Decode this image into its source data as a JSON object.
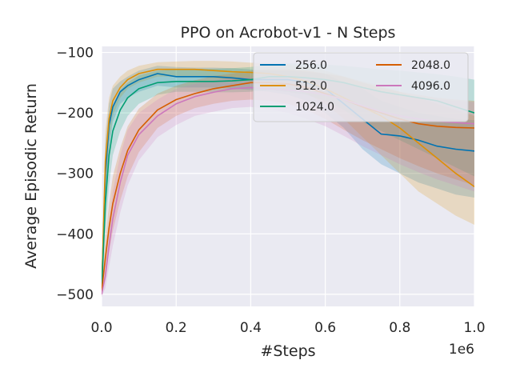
{
  "chart_data": {
    "type": "line",
    "title": "PPO on Acrobot-v1 - N Steps",
    "xlabel": "#Steps",
    "ylabel": "Average Episodic Return",
    "x_offset_label": "1e6",
    "xlim": [
      0,
      1.0
    ],
    "ylim": [
      -520,
      -90
    ],
    "xticks": [
      0.0,
      0.2,
      0.4,
      0.6,
      0.8,
      1.0
    ],
    "xtick_labels": [
      "0.0",
      "0.2",
      "0.4",
      "0.6",
      "0.8",
      "1.0"
    ],
    "yticks": [
      -100,
      -200,
      -300,
      -400,
      -500
    ],
    "ytick_labels": [
      "−100",
      "−200",
      "−300",
      "−400",
      "−500"
    ],
    "grid": true,
    "legend_location": "top-right",
    "legend_columns": 2,
    "x": [
      0.0,
      0.01,
      0.02,
      0.03,
      0.05,
      0.07,
      0.1,
      0.15,
      0.2,
      0.25,
      0.3,
      0.35,
      0.4,
      0.45,
      0.5,
      0.55,
      0.6,
      0.65,
      0.7,
      0.75,
      0.8,
      0.85,
      0.9,
      0.95,
      1.0
    ],
    "series": [
      {
        "name": "256.0",
        "color": "#0173b2",
        "values": [
          -495,
          -300,
          -220,
          -190,
          -165,
          -155,
          -145,
          -135,
          -140,
          -140,
          -140,
          -142,
          -145,
          -145,
          -145,
          -150,
          -160,
          -185,
          -210,
          -235,
          -238,
          -245,
          -255,
          -260,
          -263
        ],
        "lower": [
          -500,
          -360,
          -260,
          -215,
          -185,
          -175,
          -165,
          -155,
          -158,
          -158,
          -158,
          -160,
          -162,
          -165,
          -170,
          -180,
          -200,
          -225,
          -260,
          -285,
          -300,
          -315,
          -325,
          -335,
          -340
        ],
        "upper": [
          -490,
          -250,
          -185,
          -160,
          -148,
          -140,
          -130,
          -122,
          -124,
          -125,
          -125,
          -126,
          -128,
          -130,
          -130,
          -132,
          -135,
          -150,
          -160,
          -180,
          -190,
          -200,
          -205,
          -210,
          -212
        ]
      },
      {
        "name": "512.0",
        "color": "#de8f05",
        "values": [
          -495,
          -280,
          -210,
          -180,
          -158,
          -145,
          -135,
          -128,
          -128,
          -128,
          -130,
          -132,
          -133,
          -135,
          -140,
          -148,
          -160,
          -175,
          -190,
          -205,
          -225,
          -250,
          -275,
          -300,
          -322
        ],
        "lower": [
          -500,
          -340,
          -250,
          -205,
          -175,
          -160,
          -150,
          -140,
          -140,
          -140,
          -142,
          -145,
          -148,
          -152,
          -158,
          -168,
          -185,
          -210,
          -240,
          -270,
          -300,
          -330,
          -350,
          -370,
          -385
        ],
        "upper": [
          -490,
          -230,
          -175,
          -155,
          -140,
          -130,
          -122,
          -116,
          -115,
          -114,
          -114,
          -115,
          -117,
          -118,
          -120,
          -124,
          -130,
          -140,
          -148,
          -155,
          -165,
          -175,
          -185,
          -195,
          -205
        ]
      },
      {
        "name": "1024.0",
        "color": "#029e73",
        "values": [
          -495,
          -350,
          -270,
          -230,
          -195,
          -175,
          -160,
          -150,
          -148,
          -148,
          -148,
          -147,
          -145,
          -140,
          -140,
          -142,
          -145,
          -150,
          -158,
          -165,
          -170,
          -175,
          -180,
          -190,
          -200
        ],
        "lower": [
          -500,
          -400,
          -320,
          -270,
          -230,
          -205,
          -185,
          -170,
          -165,
          -165,
          -166,
          -166,
          -165,
          -162,
          -165,
          -170,
          -180,
          -195,
          -215,
          -230,
          -245,
          -260,
          -275,
          -290,
          -305
        ],
        "upper": [
          -490,
          -300,
          -225,
          -190,
          -162,
          -150,
          -138,
          -130,
          -128,
          -127,
          -127,
          -126,
          -124,
          -120,
          -118,
          -118,
          -120,
          -122,
          -125,
          -128,
          -130,
          -133,
          -136,
          -140,
          -145
        ]
      },
      {
        "name": "2048.0",
        "color": "#d55e00",
        "values": [
          -495,
          -440,
          -390,
          -350,
          -300,
          -262,
          -228,
          -195,
          -178,
          -168,
          -160,
          -155,
          -150,
          -150,
          -152,
          -158,
          -168,
          -178,
          -190,
          -200,
          -210,
          -218,
          -222,
          -224,
          -225
        ],
        "lower": [
          -500,
          -470,
          -430,
          -395,
          -345,
          -305,
          -265,
          -225,
          -205,
          -192,
          -185,
          -180,
          -178,
          -180,
          -185,
          -195,
          -210,
          -228,
          -245,
          -260,
          -275,
          -288,
          -300,
          -310,
          -320
        ],
        "upper": [
          -490,
          -410,
          -350,
          -305,
          -258,
          -222,
          -193,
          -168,
          -155,
          -146,
          -139,
          -135,
          -130,
          -128,
          -128,
          -130,
          -135,
          -140,
          -150,
          -158,
          -165,
          -170,
          -175,
          -178,
          -180
        ]
      },
      {
        "name": "4096.0",
        "color": "#cc78bc",
        "values": [
          -500,
          -470,
          -420,
          -375,
          -315,
          -270,
          -236,
          -205,
          -185,
          -173,
          -166,
          -160,
          -158,
          -160,
          -162,
          -165,
          -170,
          -178,
          -188,
          -198,
          -205,
          -210,
          -214,
          -216,
          -218
        ],
        "lower": [
          -505,
          -490,
          -455,
          -420,
          -365,
          -320,
          -278,
          -240,
          -220,
          -205,
          -198,
          -192,
          -190,
          -194,
          -200,
          -210,
          -222,
          -238,
          -255,
          -270,
          -285,
          -298,
          -310,
          -320,
          -330
        ],
        "upper": [
          -495,
          -450,
          -385,
          -330,
          -270,
          -228,
          -200,
          -178,
          -160,
          -152,
          -146,
          -142,
          -140,
          -140,
          -140,
          -142,
          -145,
          -150,
          -158,
          -165,
          -170,
          -175,
          -178,
          -180,
          -182
        ]
      }
    ]
  }
}
